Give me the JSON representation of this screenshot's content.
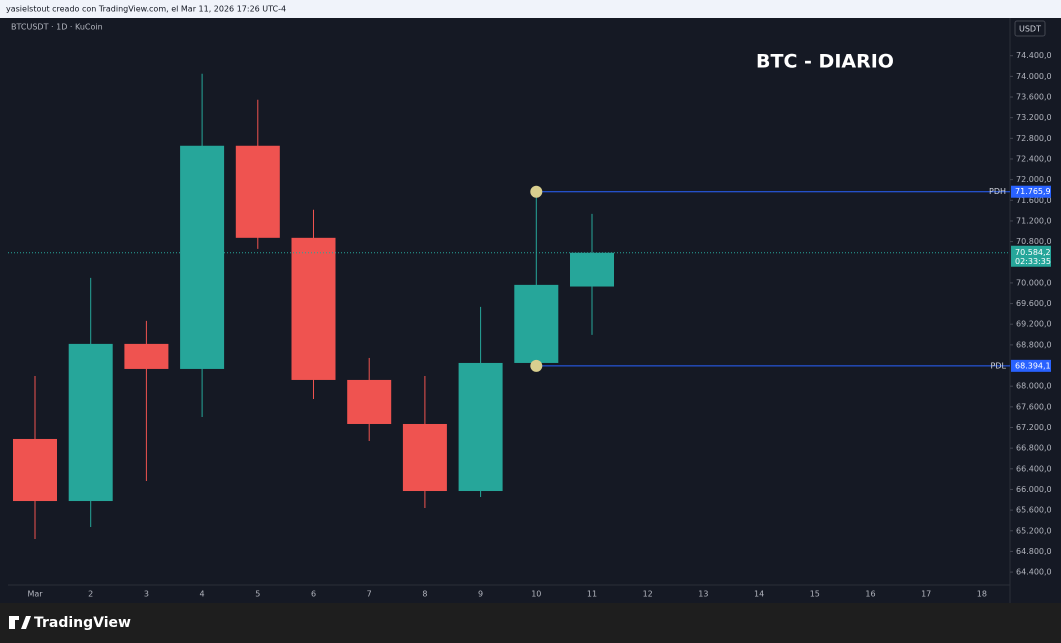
{
  "header": {
    "text": "yasielstout creado con TradingView.com, el Mar 11, 2026 17:26 UTC-4"
  },
  "footer": {
    "brand": "TradingView"
  },
  "chart_data": {
    "type": "candlestick",
    "title": "BTC - DIARIO",
    "symbol_label": "BTCUSDT · 1D · KuCoin",
    "currency": "USDT",
    "categories": [
      "Mar",
      "2",
      "3",
      "4",
      "5",
      "6",
      "7",
      "8",
      "9",
      "10",
      "11",
      "12",
      "13",
      "14",
      "15",
      "16",
      "17",
      "18"
    ],
    "open": [
      66978,
      65776,
      68819,
      68334,
      72656,
      70873,
      68121,
      67268,
      65970,
      68450,
      69930,
      null,
      null,
      null,
      null,
      null,
      null,
      null
    ],
    "high": [
      68198,
      70098,
      69264,
      74051,
      73547,
      71416,
      68547,
      68198,
      69536,
      71765.9,
      71338,
      null,
      null,
      null,
      null,
      null,
      null,
      null
    ],
    "low": [
      65040,
      65272,
      66164,
      67404,
      70660,
      67753,
      66939,
      65640,
      65853,
      68394.1,
      68993,
      null,
      null,
      null,
      null,
      null,
      null,
      null
    ],
    "close": [
      65776,
      68819,
      68334,
      72656,
      70873,
      68121,
      67268,
      65970,
      68450,
      69962,
      70584.2,
      null,
      null,
      null,
      null,
      null,
      null,
      null
    ],
    "up_color": "#26a69a",
    "down_color": "#ef5350",
    "ylim": [
      64150,
      75130
    ],
    "yticks": [
      {
        "value": 64400,
        "label": "64.400,0"
      },
      {
        "value": 64800,
        "label": "64.800,0"
      },
      {
        "value": 65200,
        "label": "65.200,0"
      },
      {
        "value": 65600,
        "label": "65.600,0"
      },
      {
        "value": 66000,
        "label": "66.000,0"
      },
      {
        "value": 66400,
        "label": "66.400,0"
      },
      {
        "value": 66800,
        "label": "66.800,0"
      },
      {
        "value": 67200,
        "label": "67.200,0"
      },
      {
        "value": 67600,
        "label": "67.600,0"
      },
      {
        "value": 68000,
        "label": "68.000,0"
      },
      {
        "value": 68800,
        "label": "68.800,0"
      },
      {
        "value": 69200,
        "label": "69.200,0"
      },
      {
        "value": 69600,
        "label": "69.600,0"
      },
      {
        "value": 70000,
        "label": "70.000,0"
      },
      {
        "value": 70800,
        "label": "70.800,0"
      },
      {
        "value": 71200,
        "label": "71.200,0"
      },
      {
        "value": 71600,
        "label": "71.600,0"
      },
      {
        "value": 72000,
        "label": "72.000,0"
      },
      {
        "value": 72400,
        "label": "72.400,0"
      },
      {
        "value": 72800,
        "label": "72.800,0"
      },
      {
        "value": 73200,
        "label": "73.200,0"
      },
      {
        "value": 73600,
        "label": "73.600,0"
      },
      {
        "value": 74000,
        "label": "74.000,0"
      },
      {
        "value": 74400,
        "label": "74.400,0"
      }
    ],
    "grid": false,
    "levels": [
      {
        "name": "PDH",
        "value": 71765.9,
        "label": "71.765,9",
        "color": "#2962ff"
      },
      {
        "name": "PDL",
        "value": 68394.1,
        "label": "68.394,1",
        "color": "#2962ff"
      }
    ],
    "current_price": {
      "value": 70584.2,
      "label": "70.584,2",
      "countdown": "02:33:35",
      "color": "#26a69a"
    }
  }
}
